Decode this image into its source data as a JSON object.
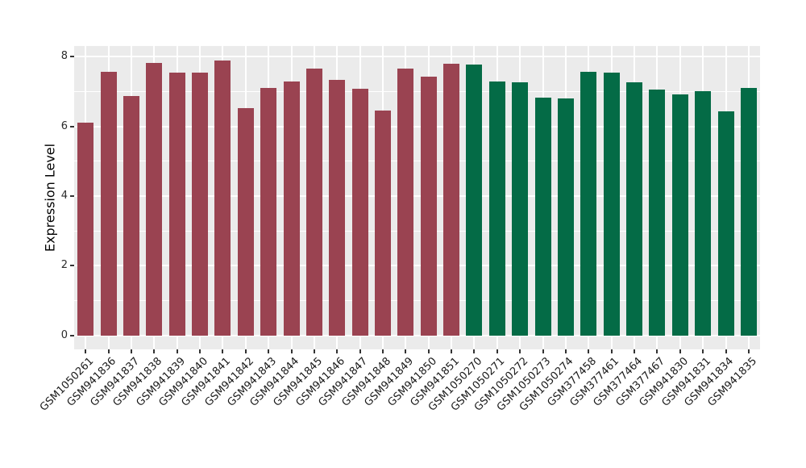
{
  "chart_data": {
    "type": "bar",
    "title": "",
    "xlabel": "",
    "ylabel": "Expression Level",
    "ylim": [
      0,
      8
    ],
    "yticks": [
      0,
      2,
      4,
      6,
      8
    ],
    "minor_gridlines_at": [
      1,
      3,
      5,
      7
    ],
    "grid": "on",
    "legend_position": "none",
    "panel_background": "#EBEBEB",
    "gridline_color": "#FFFFFF",
    "tick_color": "#333333",
    "categories": [
      "GSM1050261",
      "GSM941836",
      "GSM941837",
      "GSM941838",
      "GSM941839",
      "GSM941840",
      "GSM941841",
      "GSM941842",
      "GSM941843",
      "GSM941844",
      "GSM941845",
      "GSM941846",
      "GSM941847",
      "GSM941848",
      "GSM941849",
      "GSM941850",
      "GSM941851",
      "GSM1050270",
      "GSM1050271",
      "GSM1050272",
      "GSM1050273",
      "GSM1050274",
      "GSM377458",
      "GSM377461",
      "GSM377464",
      "GSM377467",
      "GSM941830",
      "GSM941831",
      "GSM941834",
      "GSM941835"
    ],
    "values": [
      6.1,
      7.57,
      6.86,
      7.82,
      7.53,
      7.55,
      7.88,
      6.52,
      7.1,
      7.28,
      7.65,
      7.33,
      7.08,
      6.46,
      7.66,
      7.43,
      7.8,
      7.78,
      7.28,
      7.26,
      6.82,
      6.81,
      7.56,
      7.53,
      7.26,
      7.06,
      6.91,
      7.01,
      6.43,
      7.09
    ],
    "group_colors": {
      "left_group": "#9A4351",
      "right_group": "#046B46"
    },
    "left_group_count": 17
  }
}
